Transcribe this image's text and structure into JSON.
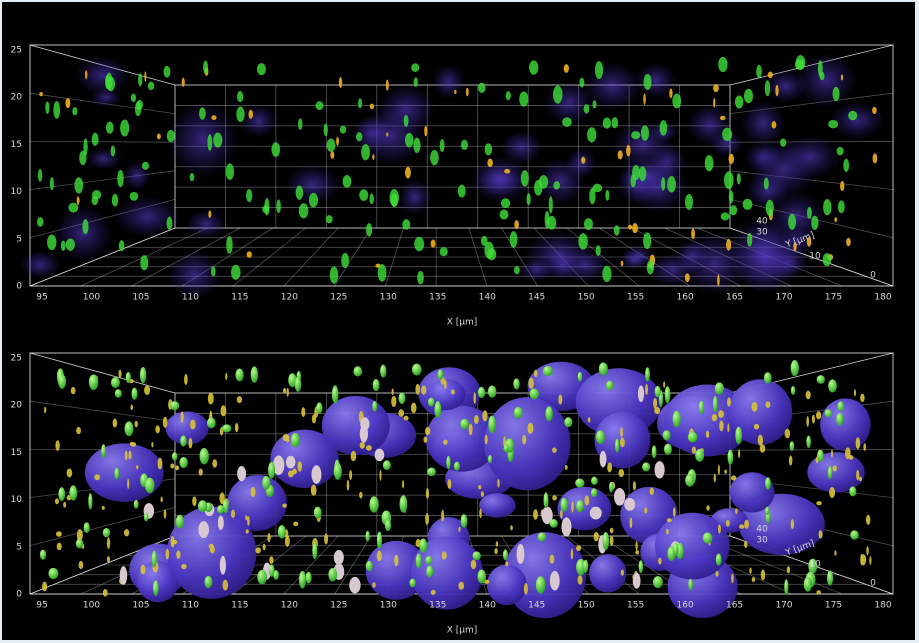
{
  "panels": [
    {
      "y_ticks": [
        0,
        5,
        10,
        15,
        20,
        25
      ],
      "x_ticks": [
        95,
        100,
        105,
        110,
        115,
        120,
        125,
        130,
        135,
        140,
        145,
        150,
        155,
        160,
        165,
        170,
        175,
        180
      ],
      "x_label": "X [µm]",
      "depth_label": "Y [µm]",
      "depth_ticks": [
        0,
        10,
        30,
        40
      ]
    },
    {
      "y_ticks": [
        0,
        5,
        10,
        15,
        20,
        25
      ],
      "x_ticks": [
        95,
        100,
        105,
        110,
        115,
        120,
        125,
        130,
        135,
        140,
        145,
        150,
        155,
        160,
        165,
        170,
        175,
        180
      ],
      "x_label": "X [µm]",
      "depth_label": "Y [µm]",
      "depth_ticks": [
        0,
        10,
        30,
        40
      ]
    }
  ]
}
